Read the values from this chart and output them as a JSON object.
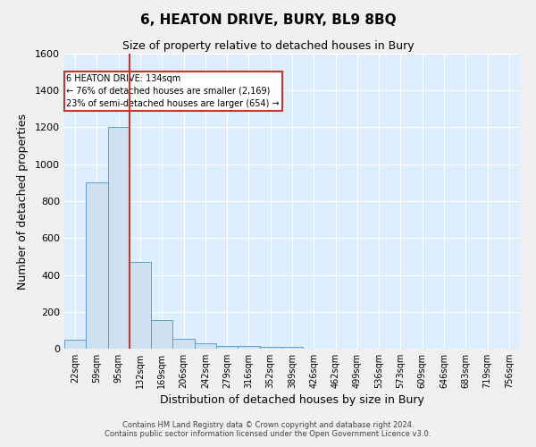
{
  "title": "6, HEATON DRIVE, BURY, BL9 8BQ",
  "subtitle": "Size of property relative to detached houses in Bury",
  "xlabel": "Distribution of detached houses by size in Bury",
  "ylabel": "Number of detached properties",
  "footer_line1": "Contains HM Land Registry data © Crown copyright and database right 2024.",
  "footer_line2": "Contains public sector information licensed under the Open Government Licence v3.0.",
  "categories": [
    "22sqm",
    "59sqm",
    "95sqm",
    "132sqm",
    "169sqm",
    "206sqm",
    "242sqm",
    "279sqm",
    "316sqm",
    "352sqm",
    "389sqm",
    "426sqm",
    "462sqm",
    "499sqm",
    "536sqm",
    "573sqm",
    "609sqm",
    "646sqm",
    "683sqm",
    "719sqm",
    "756sqm"
  ],
  "values": [
    50,
    900,
    1200,
    470,
    155,
    55,
    30,
    15,
    13,
    10,
    12,
    0,
    0,
    0,
    0,
    0,
    0,
    0,
    0,
    0,
    0
  ],
  "bar_color": "#cfe0f0",
  "bar_edge_color": "#5a9fd4",
  "vline_color": "#c0392b",
  "annotation_title": "6 HEATON DRIVE: 134sqm",
  "annotation_line2": "← 76% of detached houses are smaller (2,169)",
  "annotation_line3": "23% of semi-detached houses are larger (654) →",
  "annotation_box_color": "#ffffff",
  "annotation_box_edge": "#c0392b",
  "ylim": [
    0,
    1600
  ],
  "yticks": [
    0,
    200,
    400,
    600,
    800,
    1000,
    1200,
    1400,
    1600
  ],
  "background_color": "#ddeeff",
  "grid_color": "#ffffff",
  "fig_background": "#f0f0f0",
  "title_fontsize": 11,
  "subtitle_fontsize": 9
}
